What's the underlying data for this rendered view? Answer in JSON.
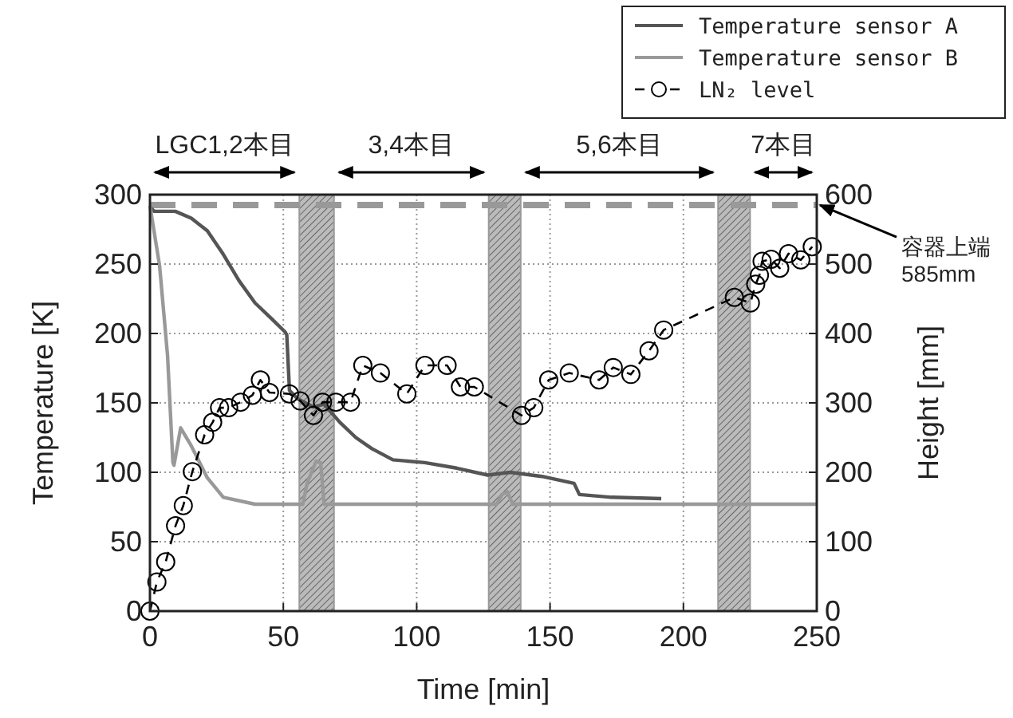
{
  "chart_data": {
    "type": "line",
    "xlabel": "Time [min]",
    "ylabel": "Temperature [K]",
    "y2label": "Height [mm]",
    "xlim": [
      0,
      250
    ],
    "xticks": [
      0,
      50,
      100,
      150,
      200,
      250
    ],
    "ylim": [
      0,
      300
    ],
    "yticks": [
      0,
      50,
      100,
      150,
      200,
      250,
      300
    ],
    "y2lim": [
      0,
      600
    ],
    "y2ticks": [
      0,
      100,
      200,
      300,
      400,
      500,
      600
    ],
    "grid": true,
    "legend": "top right",
    "series": [
      {
        "name": "Temperature sensor A",
        "color": "#555555",
        "x": [
          0,
          1.6,
          9.5,
          15.5,
          21.5,
          27.5,
          33.4,
          39.4,
          45.4,
          50.7,
          51.3,
          52.3,
          55.3,
          61.3,
          65.3,
          71.2,
          77.2,
          83.2,
          91.1,
          103,
          115,
          126.6,
          135,
          147,
          159,
          161,
          173,
          191.7
        ],
        "values": [
          291,
          288,
          288,
          283,
          274,
          257,
          238,
          222,
          211,
          201,
          199,
          159,
          153,
          147,
          149,
          136,
          125,
          117,
          109,
          107,
          103,
          98,
          100,
          97,
          92,
          84,
          82,
          81
        ]
      },
      {
        "name": "Temperature sensor B",
        "color": "#999999",
        "x": [
          0,
          3.6,
          6.6,
          8.6,
          9,
          11.5,
          15.5,
          21.5,
          27.5,
          39.4,
          57.3,
          58.9,
          62.3,
          64,
          65.3,
          130,
          132,
          134,
          136,
          250
        ],
        "values": [
          292,
          249,
          184,
          107,
          105,
          132,
          119,
          96,
          82,
          77,
          77,
          92,
          108,
          107,
          77,
          77,
          84,
          86,
          77,
          77
        ]
      },
      {
        "name": "LN₂ level",
        "color": "#000000",
        "axis": "y2",
        "marker": "circle",
        "line_style": "dashed",
        "x": [
          0,
          2.6,
          5.9,
          9.6,
          12.5,
          15.9,
          20.5,
          23.5,
          26.1,
          29.5,
          34,
          38.4,
          41.4,
          44.8,
          52.3,
          56.3,
          61.3,
          64.7,
          69.7,
          75.2,
          79.8,
          86.4,
          96.3,
          103.1,
          111.4,
          116.4,
          121.6,
          139.3,
          143.9,
          149.5,
          157.2,
          168.4,
          173.7,
          180.3,
          187.1,
          192.6,
          219.1,
          225.1,
          227.1,
          228.5,
          229.5,
          232.9,
          236.1,
          239.4,
          244,
          248.3
        ],
        "values": [
          0,
          42,
          71,
          123,
          152,
          201,
          254,
          272,
          293,
          293,
          301,
          311,
          333,
          315,
          313,
          303,
          282,
          301,
          301,
          301,
          354,
          343,
          313,
          354,
          354,
          323,
          323,
          282,
          293,
          333,
          343,
          333,
          351,
          341,
          375,
          405,
          452,
          444,
          471,
          484,
          504,
          507,
          494,
          515,
          506,
          525
        ]
      }
    ],
    "bands": [
      {
        "axis": "x",
        "from": 56,
        "to": 69,
        "color": "#999999"
      },
      {
        "axis": "x",
        "from": 127,
        "to": 139,
        "color": "#999999"
      },
      {
        "axis": "x",
        "from": 213,
        "to": 225,
        "color": "#999999"
      }
    ],
    "ref_lines": [
      {
        "axis": "y2",
        "value": 585,
        "label": "容器上端\n585mm",
        "color": "#999999",
        "line_style": "dashed"
      }
    ],
    "annotations": [
      "LGC1,2本目",
      "3,4本目",
      "5,6本目",
      "7本目"
    ]
  }
}
